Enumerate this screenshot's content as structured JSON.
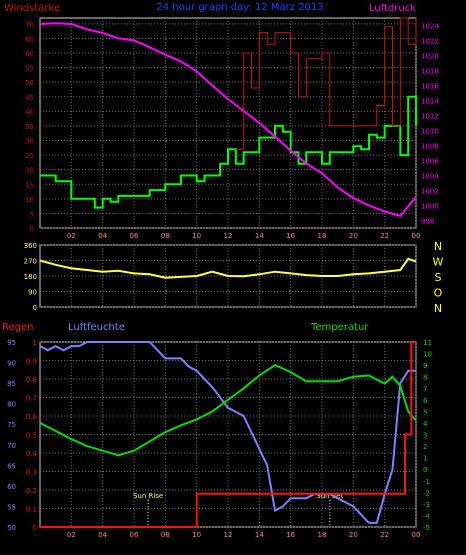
{
  "header": {
    "left_label": "Windstärke",
    "title": "24 hour graph day: 12 März 2013",
    "right_label": "Luftdruck"
  },
  "colors": {
    "background": "#000000",
    "grid": "#6e6e6e",
    "wind": "#00ff00",
    "wind_gust": "#d01010",
    "pressure": "#ff00ff",
    "direction": "#ffff40",
    "rain": "#ff1010",
    "humidity": "#8080ff",
    "temperature": "#00e000",
    "title": "#2040ff",
    "axis_text": "#ff8080",
    "sun_text": "#ffff60",
    "direction_axis": "#ffff40",
    "direction_letters": "#ffff00"
  },
  "bottom_labels": {
    "rain": "Regen",
    "humidity": "Luftfeuchte",
    "temperature": "Temperatur"
  },
  "annotations": [
    {
      "label": "Sun Rise",
      "hour": 6.9
    },
    {
      "label": "Sun Set",
      "hour": 18.5
    }
  ],
  "x_axis": {
    "tick_labels": [
      "02",
      "04",
      "06",
      "08",
      "10",
      "12",
      "14",
      "16",
      "18",
      "20",
      "22",
      "00"
    ],
    "tick_hours": [
      2,
      4,
      6,
      8,
      10,
      12,
      14,
      16,
      18,
      20,
      22,
      24
    ],
    "range": [
      0,
      24
    ]
  },
  "chart_data": [
    {
      "type": "line",
      "name": "wind-pressure",
      "y_left": {
        "label": "Windstärke",
        "range": [
          0,
          72
        ],
        "ticks": [
          0,
          5,
          10,
          15,
          20,
          25,
          30,
          35,
          40,
          45,
          50,
          55,
          60,
          65,
          70
        ]
      },
      "y_right": {
        "label": "Luftdruck",
        "range": [
          997,
          1025
        ],
        "ticks": [
          998,
          1000,
          1002,
          1004,
          1006,
          1008,
          1010,
          1012,
          1014,
          1016,
          1018,
          1020,
          1022,
          1024
        ]
      },
      "grid": true,
      "series": [
        {
          "key": "wind",
          "axis": "left",
          "step": true,
          "x": [
            0,
            1,
            2,
            2.5,
            3,
            3.5,
            4,
            4.5,
            5,
            5.5,
            6,
            6.5,
            7,
            7.5,
            8,
            8.5,
            9,
            9.5,
            10,
            10.5,
            11,
            11.5,
            12,
            12.5,
            13,
            13.5,
            14,
            14.5,
            15,
            15.5,
            16,
            16.5,
            17,
            17.5,
            18,
            18.5,
            19,
            19.5,
            20,
            20.5,
            21,
            21.5,
            22,
            22.5,
            23,
            23.5,
            24
          ],
          "y": [
            18,
            16,
            10,
            10,
            10,
            7,
            10,
            9,
            11,
            11,
            11,
            11,
            13,
            13,
            15,
            15,
            18,
            18,
            16,
            18,
            18,
            22,
            27,
            22,
            26,
            26,
            31,
            31,
            35,
            33,
            26,
            22,
            26,
            26,
            22,
            26,
            26,
            26,
            28,
            27,
            32,
            31,
            35,
            35,
            25,
            45,
            35
          ]
        },
        {
          "key": "wind_gust",
          "axis": "left",
          "step": true,
          "x": [
            12.5,
            13,
            13.5,
            14,
            14.5,
            15,
            15.5,
            16,
            16.5,
            17,
            17.5,
            18,
            18.5,
            19,
            19.5,
            20,
            20.5,
            21,
            21.5,
            22,
            22.5,
            23,
            23.5,
            24
          ],
          "y": [
            27,
            60,
            48,
            67,
            63,
            67,
            67,
            60,
            45,
            58,
            58,
            60,
            35,
            35,
            35,
            35,
            35,
            35,
            42,
            69,
            35,
            72,
            63,
            72
          ]
        },
        {
          "key": "pressure",
          "axis": "right",
          "x": [
            0,
            1,
            2,
            3,
            4,
            5,
            6,
            7,
            8,
            9,
            10,
            11,
            12,
            13,
            14,
            15,
            16,
            17,
            18,
            19,
            20,
            21,
            22,
            23,
            23.5,
            24
          ],
          "y": [
            1024.2,
            1024.3,
            1024.2,
            1023.5,
            1023.0,
            1022.3,
            1022.0,
            1021.1,
            1020.1,
            1019.2,
            1017.9,
            1016.0,
            1014.2,
            1012.6,
            1011.0,
            1009.2,
            1007.3,
            1005.6,
            1004.3,
            1002.4,
            1001.0,
            1000.0,
            999.2,
            998.6,
            999.9,
            1001.1
          ]
        }
      ]
    },
    {
      "type": "line",
      "name": "wind-direction",
      "y_left": {
        "range": [
          0,
          360
        ],
        "ticks": [
          0,
          90,
          180,
          270,
          360
        ]
      },
      "y_right": {
        "tick_labels": [
          "N",
          "W",
          "S",
          "O",
          "N"
        ]
      },
      "grid": true,
      "series": [
        {
          "key": "direction",
          "axis": "left",
          "x": [
            0,
            1,
            2,
            3,
            4,
            5,
            6,
            7,
            8,
            9,
            10,
            11,
            12,
            13,
            14,
            15,
            16,
            17,
            18,
            19,
            20,
            21,
            22,
            23,
            23.5,
            24
          ],
          "y": [
            270,
            245,
            225,
            215,
            205,
            210,
            195,
            190,
            170,
            175,
            180,
            205,
            180,
            178,
            190,
            205,
            195,
            185,
            180,
            180,
            190,
            195,
            205,
            215,
            280,
            265
          ]
        }
      ]
    },
    {
      "type": "line",
      "name": "rain-humidity-temperature",
      "y_humidity": {
        "label": "Luftfeuchte",
        "range": [
          50,
          95
        ],
        "ticks": [
          50,
          55,
          60,
          65,
          70,
          75,
          80,
          85,
          90,
          95
        ]
      },
      "y_rain": {
        "label": "Regen",
        "range": [
          0,
          1
        ],
        "ticks": [
          0,
          0.1,
          0.2,
          0.3,
          0.4,
          0.5,
          0.6,
          0.7,
          0.8,
          0.9,
          1
        ]
      },
      "y_temperature": {
        "label": "Temperatur",
        "range": [
          -5,
          11
        ],
        "ticks": [
          -5,
          -4,
          -3,
          -2,
          -1,
          0,
          1,
          2,
          3,
          4,
          5,
          6,
          7,
          8,
          9,
          10,
          11
        ]
      },
      "grid": true,
      "series": [
        {
          "key": "rain",
          "axis": "rain",
          "step": true,
          "x": [
            0,
            10,
            10,
            23.3,
            23.3,
            23.7,
            23.7,
            24
          ],
          "y": [
            0,
            0,
            0.18,
            0.18,
            0.5,
            0.5,
            1,
            1
          ]
        },
        {
          "key": "humidity",
          "axis": "humidity",
          "x": [
            0,
            0.5,
            1,
            1.5,
            2,
            2.5,
            3,
            3.5,
            4,
            5,
            6,
            7,
            7.5,
            8,
            8.5,
            9,
            9.5,
            10,
            10.5,
            11,
            12,
            13,
            14,
            14.5,
            15,
            15.5,
            16,
            16.5,
            17,
            17.5,
            18,
            18.5,
            19,
            19.5,
            20,
            20.5,
            21,
            21.5,
            22,
            22.5,
            23,
            23.5,
            24
          ],
          "y": [
            94,
            93,
            94,
            93,
            94,
            94,
            95,
            95,
            95,
            95,
            95,
            95,
            93,
            91,
            91,
            91,
            89,
            88,
            86,
            84,
            79,
            77,
            69,
            65,
            54,
            55,
            57,
            57,
            57,
            58,
            58,
            58,
            57,
            56,
            55,
            53,
            51,
            51,
            58,
            64,
            85,
            88,
            88
          ]
        },
        {
          "key": "temperature",
          "axis": "temperature",
          "x": [
            0,
            1,
            2,
            3,
            4,
            5,
            6,
            7,
            8,
            9,
            10,
            11,
            12,
            13,
            14,
            15,
            16,
            17,
            18,
            19,
            20,
            21,
            22,
            22.5,
            23,
            23.5,
            24
          ],
          "y": [
            4.0,
            3.3,
            2.6,
            2.0,
            1.6,
            1.2,
            1.6,
            2.4,
            3.2,
            3.8,
            4.3,
            5.0,
            6.0,
            7.0,
            8.1,
            9.0,
            8.4,
            7.6,
            7.6,
            7.6,
            8.0,
            8.1,
            7.4,
            8.0,
            7.2,
            5.0,
            4.2
          ]
        }
      ]
    }
  ]
}
